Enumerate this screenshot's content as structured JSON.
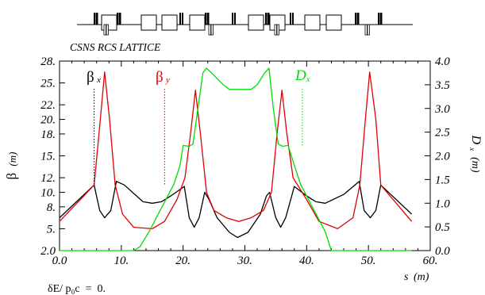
{
  "chart_data": {
    "type": "line",
    "title": "CSNS RCS LATTICE",
    "xlabel_main": "s",
    "xlabel_unit": "(m)",
    "ylabel_left_main": "β",
    "ylabel_left_unit": "(m)",
    "ylabel_right_main": "D",
    "ylabel_right_sub": "x",
    "ylabel_right_unit": "(m)",
    "footnote": "δE/ p₀c  =  0.",
    "xlim": [
      0,
      60
    ],
    "ylim_left": [
      2.0,
      28.0
    ],
    "ylim_right": [
      0.0,
      4.0
    ],
    "x_ticks": [
      "0.0",
      "10.",
      "20.",
      "30.",
      "40.",
      "50.",
      "60."
    ],
    "y_left_ticks": [
      "2.0",
      "5.",
      "8.",
      "10.",
      "12.",
      "15.",
      "18.",
      "20.",
      "22.",
      "25.",
      "28."
    ],
    "y_right_ticks": [
      "0.0",
      "0.5",
      "1.0",
      "1.5",
      "2.0",
      "2.5",
      "3.0",
      "3.5",
      "4.0"
    ],
    "series": [
      {
        "name": "βx",
        "label_main": "β",
        "label_sub": "x",
        "color": "#000000",
        "axis": "left",
        "x": [
          0.0,
          5.6,
          6.5,
          7.3,
          8.3,
          9.2,
          10.5,
          13.5,
          15.0,
          16.5,
          18.0,
          20.2,
          21.0,
          21.8,
          22.6,
          23.5,
          24.2,
          25.5,
          27.5,
          28.8,
          30.5,
          32.5,
          33.5,
          34.0,
          35.0,
          35.8,
          36.6,
          38.0,
          40.0,
          41.5,
          43.0,
          46.0,
          48.5,
          49.3,
          50.3,
          51.2,
          52.0,
          57.0
        ],
        "y": [
          6.5,
          11.0,
          7.5,
          6.5,
          7.5,
          11.5,
          11.0,
          8.7,
          8.5,
          8.7,
          9.5,
          10.8,
          6.5,
          5.2,
          6.5,
          10.0,
          9.0,
          6.5,
          4.5,
          3.8,
          4.5,
          7.0,
          9.5,
          10.0,
          6.5,
          5.2,
          6.5,
          10.8,
          9.5,
          8.7,
          8.5,
          9.7,
          11.5,
          7.5,
          6.5,
          7.5,
          11.0,
          7.0
        ]
      },
      {
        "name": "βy",
        "label_main": "β",
        "label_sub": "y",
        "color": "#e00000",
        "axis": "left",
        "x": [
          0.0,
          5.6,
          6.6,
          7.3,
          8.1,
          9.0,
          10.2,
          12.0,
          15.0,
          17.0,
          19.0,
          20.3,
          21.2,
          22.0,
          22.8,
          23.8,
          25.0,
          27.0,
          29.0,
          31.0,
          33.0,
          34.3,
          35.2,
          36.0,
          36.8,
          37.8,
          40.0,
          42.0,
          45.0,
          47.5,
          48.6,
          49.5,
          50.2,
          51.2,
          52.0,
          57.0
        ],
        "y": [
          6.0,
          11.0,
          20.0,
          26.5,
          20.0,
          11.0,
          7.0,
          5.2,
          5.0,
          6.0,
          9.0,
          12.0,
          18.0,
          24.0,
          18.0,
          10.0,
          7.5,
          6.5,
          6.0,
          6.5,
          7.5,
          10.0,
          18.0,
          24.0,
          18.0,
          12.0,
          9.0,
          6.0,
          5.0,
          6.5,
          11.0,
          20.0,
          26.5,
          20.0,
          11.0,
          6.0
        ]
      },
      {
        "name": "Dx",
        "label_main": "D",
        "label_sub": "x",
        "color": "#00dd00",
        "axis": "right",
        "x": [
          0.0,
          12.0,
          13.0,
          14.5,
          16.5,
          18.5,
          19.5,
          20.0,
          21.0,
          21.6,
          22.4,
          23.2,
          23.8,
          25.0,
          26.5,
          27.5,
          31.0,
          32.0,
          33.2,
          33.9,
          34.6,
          35.4,
          36.1,
          37.0,
          38.0,
          39.0,
          41.0,
          43.0,
          44.0,
          57.0
        ],
        "y": [
          0.0,
          0.0,
          0.08,
          0.4,
          0.9,
          1.4,
          1.8,
          2.22,
          2.2,
          2.25,
          3.0,
          3.75,
          3.85,
          3.7,
          3.5,
          3.4,
          3.4,
          3.5,
          3.75,
          3.85,
          3.0,
          2.25,
          2.2,
          2.22,
          1.8,
          1.4,
          0.9,
          0.4,
          0.0,
          0.0
        ]
      }
    ],
    "legend_positions_note": "labels placed near each curve at top of plot",
    "dotted_markers": [
      {
        "series": "βx",
        "x": 5.6
      },
      {
        "series": "βy",
        "x": 17.0
      },
      {
        "series": "Dx",
        "x": 39.3
      }
    ],
    "lattice_diagram": "beamline element schematic (dipoles as boxes, quadrupoles as small bars) above the plot"
  }
}
